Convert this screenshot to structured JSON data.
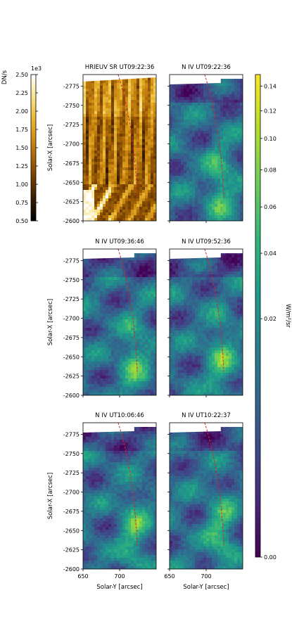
{
  "colors": {
    "limb_line": "#d62728",
    "axis": "#000000",
    "background": "#ffffff"
  },
  "chart_data": [
    {
      "type": "heatmap",
      "title": "HRIEUV SR UT09:22:36",
      "xlabel": "",
      "ylabel": "Solar-X [arcsec]",
      "colormap": "sdoaia171",
      "x_ticks": [],
      "y_ticks": [
        "-2775",
        "-2750",
        "-2725",
        "-2700",
        "-2675",
        "-2650",
        "-2625",
        "-2600"
      ],
      "overlay": "dashed red limb curve"
    },
    {
      "type": "heatmap",
      "title": "N IV UT09:22:36",
      "xlabel": "",
      "ylabel": "",
      "colormap": "viridis",
      "x_ticks": [],
      "y_ticks": [],
      "overlay": "dashed red limb curve"
    },
    {
      "type": "heatmap",
      "title": "N IV UT09:36:46",
      "xlabel": "",
      "ylabel": "Solar-X [arcsec]",
      "colormap": "viridis",
      "x_ticks": [],
      "y_ticks": [
        "-2775",
        "-2750",
        "-2725",
        "-2700",
        "-2675",
        "-2650",
        "-2625",
        "-2600"
      ],
      "overlay": "dashed red limb curve"
    },
    {
      "type": "heatmap",
      "title": "N IV UT09:52:36",
      "xlabel": "",
      "ylabel": "",
      "colormap": "viridis",
      "x_ticks": [],
      "y_ticks": [],
      "overlay": "dashed red limb curve"
    },
    {
      "type": "heatmap",
      "title": "N IV UT10:06:46",
      "xlabel": "Solar-Y [arcsec]",
      "ylabel": "Solar-X [arcsec]",
      "colormap": "viridis",
      "x_ticks": [
        "650",
        "700"
      ],
      "y_ticks": [
        "-2775",
        "-2750",
        "-2725",
        "-2700",
        "-2675",
        "-2650",
        "-2625",
        "-2600"
      ],
      "overlay": "dashed red limb curve"
    },
    {
      "type": "heatmap",
      "title": "N IV UT10:22:37",
      "xlabel": "Solar-Y [arcsec]",
      "ylabel": "",
      "colormap": "viridis",
      "x_ticks": [
        "650",
        "700"
      ],
      "y_ticks": [],
      "overlay": "dashed red limb curve"
    }
  ],
  "colorbars": [
    {
      "label": "DN/s",
      "multiplier": "1e3",
      "colormap": "sdoaia171",
      "range": [
        0.5,
        2.5
      ],
      "ticks": [
        "2.50",
        "2.25",
        "2.00",
        "1.75",
        "1.50",
        "1.25",
        "1.00",
        "0.75",
        "0.50"
      ]
    },
    {
      "label": "W/m²/sr",
      "colormap": "viridis",
      "scale": "power-law",
      "range": [
        0.0,
        0.15
      ],
      "ticks": [
        "0.14",
        "0.12",
        "0.10",
        "0.08",
        "0.06",
        "0.04",
        "0.02",
        "0.00"
      ]
    }
  ]
}
